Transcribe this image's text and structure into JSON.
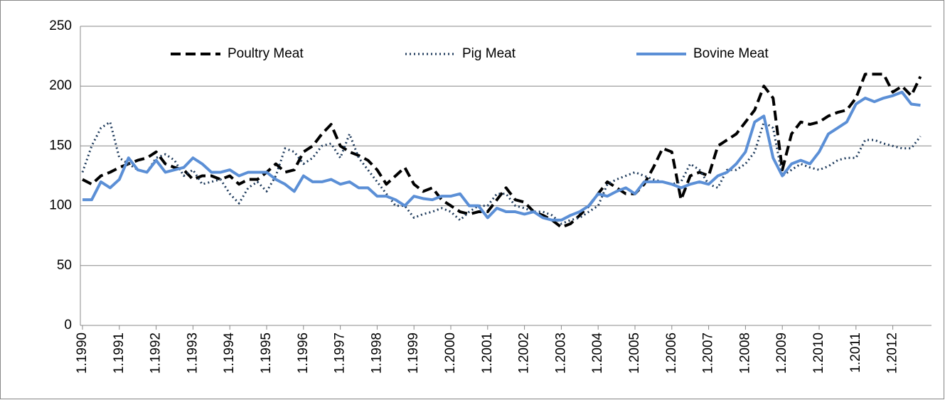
{
  "chart_data": {
    "type": "line",
    "categories": [
      "1.1990",
      null,
      null,
      null,
      "1.1991",
      null,
      null,
      null,
      "1.1992",
      null,
      null,
      null,
      "1.1993",
      null,
      null,
      null,
      "1.1994",
      null,
      null,
      null,
      "1.1995",
      null,
      null,
      null,
      "1.1996",
      null,
      null,
      null,
      "1.1997",
      null,
      null,
      null,
      "1.1998",
      null,
      null,
      null,
      "1.1999",
      null,
      null,
      null,
      "1.2000",
      null,
      null,
      null,
      "1.2001",
      null,
      null,
      null,
      "1.2002",
      null,
      null,
      null,
      "1.2003",
      null,
      null,
      null,
      "1.2004",
      null,
      null,
      null,
      "1.2005",
      null,
      null,
      null,
      "1.2006",
      null,
      null,
      null,
      "1.2007",
      null,
      null,
      null,
      "1.2008",
      null,
      null,
      null,
      "1.2009",
      null,
      null,
      null,
      "1.2010",
      null,
      null,
      null,
      "1.2011",
      null,
      null,
      null,
      "1.2012",
      null,
      null,
      null
    ],
    "series": [
      {
        "name": "Poultry Meat",
        "color": "#000000",
        "dash": "dashed",
        "width": 4,
        "values": [
          122,
          118,
          125,
          128,
          132,
          135,
          138,
          140,
          145,
          135,
          132,
          130,
          122,
          125,
          125,
          122,
          125,
          118,
          122,
          122,
          128,
          135,
          128,
          130,
          145,
          150,
          160,
          168,
          150,
          145,
          142,
          138,
          130,
          118,
          125,
          132,
          118,
          112,
          115,
          105,
          100,
          95,
          93,
          95,
          95,
          105,
          115,
          105,
          103,
          95,
          92,
          88,
          82,
          85,
          92,
          100,
          110,
          120,
          115,
          110,
          110,
          118,
          132,
          148,
          145,
          105,
          125,
          128,
          125,
          150,
          155,
          160,
          170,
          180,
          200,
          190,
          130,
          160,
          170,
          168,
          170,
          175,
          178,
          180,
          190,
          210,
          210,
          210,
          195,
          200,
          192,
          208
        ]
      },
      {
        "name": "Pig Meat",
        "color": "#1f3b5c",
        "dash": "dotted",
        "width": 3,
        "values": [
          128,
          150,
          165,
          170,
          140,
          135,
          130,
          128,
          140,
          143,
          138,
          125,
          130,
          118,
          120,
          122,
          110,
          102,
          115,
          120,
          112,
          125,
          148,
          145,
          135,
          140,
          150,
          152,
          140,
          160,
          140,
          130,
          120,
          110,
          100,
          100,
          90,
          93,
          95,
          98,
          95,
          88,
          95,
          100,
          100,
          110,
          110,
          100,
          98,
          95,
          95,
          92,
          85,
          88,
          90,
          95,
          100,
          118,
          122,
          125,
          128,
          125,
          122,
          120,
          118,
          120,
          135,
          130,
          118,
          115,
          130,
          130,
          135,
          145,
          170,
          165,
          125,
          130,
          135,
          132,
          130,
          133,
          138,
          140,
          140,
          155,
          155,
          152,
          150,
          148,
          148,
          158
        ]
      },
      {
        "name": "Bovine Meat",
        "color": "#5b8fd6",
        "dash": "solid",
        "width": 4,
        "values": [
          105,
          105,
          120,
          115,
          122,
          140,
          130,
          128,
          138,
          128,
          130,
          132,
          140,
          135,
          128,
          128,
          130,
          125,
          128,
          128,
          128,
          122,
          118,
          112,
          125,
          120,
          120,
          122,
          118,
          120,
          115,
          115,
          108,
          108,
          105,
          100,
          108,
          106,
          105,
          108,
          108,
          110,
          100,
          100,
          90,
          98,
          95,
          95,
          93,
          95,
          90,
          88,
          88,
          92,
          95,
          100,
          110,
          108,
          112,
          115,
          110,
          120,
          120,
          120,
          118,
          115,
          118,
          120,
          118,
          125,
          128,
          135,
          145,
          170,
          175,
          140,
          125,
          135,
          138,
          135,
          145,
          160,
          165,
          170,
          185,
          190,
          187,
          190,
          192,
          195,
          185,
          184
        ]
      }
    ],
    "ylim": [
      0,
      250
    ],
    "yticks": [
      0,
      50,
      100,
      150,
      200,
      250
    ],
    "grid": true,
    "legend": "top"
  }
}
